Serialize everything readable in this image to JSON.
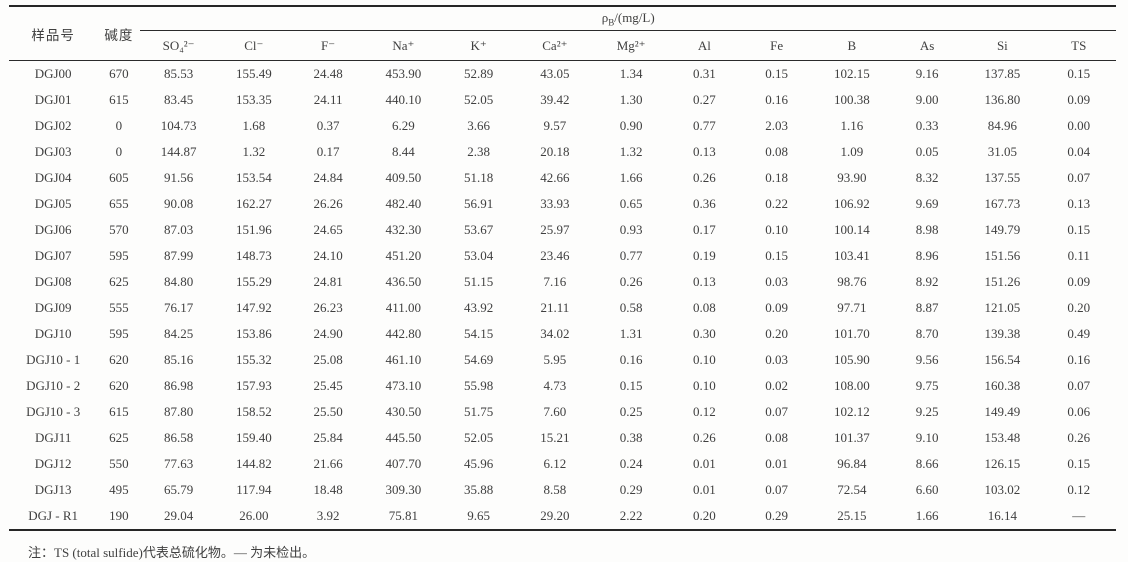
{
  "table": {
    "col_sample": "样品号",
    "col_alkalinity": "碱度",
    "group_header": {
      "rho": "ρ",
      "sub": "B",
      "unit": "/(mg/L)"
    },
    "ion_columns": [
      "SO₄²⁻",
      "Cl⁻",
      "F⁻",
      "Na⁺",
      "K⁺",
      "Ca²⁺",
      "Mg²⁺",
      "Al",
      "Fe",
      "B",
      "As",
      "Si",
      "TS"
    ],
    "rows": [
      {
        "id": "DGJ00",
        "alkalinity": "670",
        "values": [
          "85.53",
          "155.49",
          "24.48",
          "453.90",
          "52.89",
          "43.05",
          "1.34",
          "0.31",
          "0.15",
          "102.15",
          "9.16",
          "137.85",
          "0.15"
        ]
      },
      {
        "id": "DGJ01",
        "alkalinity": "615",
        "values": [
          "83.45",
          "153.35",
          "24.11",
          "440.10",
          "52.05",
          "39.42",
          "1.30",
          "0.27",
          "0.16",
          "100.38",
          "9.00",
          "136.80",
          "0.09"
        ]
      },
      {
        "id": "DGJ02",
        "alkalinity": "0",
        "values": [
          "104.73",
          "1.68",
          "0.37",
          "6.29",
          "3.66",
          "9.57",
          "0.90",
          "0.77",
          "2.03",
          "1.16",
          "0.33",
          "84.96",
          "0.00"
        ]
      },
      {
        "id": "DGJ03",
        "alkalinity": "0",
        "values": [
          "144.87",
          "1.32",
          "0.17",
          "8.44",
          "2.38",
          "20.18",
          "1.32",
          "0.13",
          "0.08",
          "1.09",
          "0.05",
          "31.05",
          "0.04"
        ]
      },
      {
        "id": "DGJ04",
        "alkalinity": "605",
        "values": [
          "91.56",
          "153.54",
          "24.84",
          "409.50",
          "51.18",
          "42.66",
          "1.66",
          "0.26",
          "0.18",
          "93.90",
          "8.32",
          "137.55",
          "0.07"
        ]
      },
      {
        "id": "DGJ05",
        "alkalinity": "655",
        "values": [
          "90.08",
          "162.27",
          "26.26",
          "482.40",
          "56.91",
          "33.93",
          "0.65",
          "0.36",
          "0.22",
          "106.92",
          "9.69",
          "167.73",
          "0.13"
        ]
      },
      {
        "id": "DGJ06",
        "alkalinity": "570",
        "values": [
          "87.03",
          "151.96",
          "24.65",
          "432.30",
          "53.67",
          "25.97",
          "0.93",
          "0.17",
          "0.10",
          "100.14",
          "8.98",
          "149.79",
          "0.15"
        ]
      },
      {
        "id": "DGJ07",
        "alkalinity": "595",
        "values": [
          "87.99",
          "148.73",
          "24.10",
          "451.20",
          "53.04",
          "23.46",
          "0.77",
          "0.19",
          "0.15",
          "103.41",
          "8.96",
          "151.56",
          "0.11"
        ]
      },
      {
        "id": "DGJ08",
        "alkalinity": "625",
        "values": [
          "84.80",
          "155.29",
          "24.81",
          "436.50",
          "51.15",
          "7.16",
          "0.26",
          "0.13",
          "0.03",
          "98.76",
          "8.92",
          "151.26",
          "0.09"
        ]
      },
      {
        "id": "DGJ09",
        "alkalinity": "555",
        "values": [
          "76.17",
          "147.92",
          "26.23",
          "411.00",
          "43.92",
          "21.11",
          "0.58",
          "0.08",
          "0.09",
          "97.71",
          "8.87",
          "121.05",
          "0.20"
        ]
      },
      {
        "id": "DGJ10",
        "alkalinity": "595",
        "values": [
          "84.25",
          "153.86",
          "24.90",
          "442.80",
          "54.15",
          "34.02",
          "1.31",
          "0.30",
          "0.20",
          "101.70",
          "8.70",
          "139.38",
          "0.49"
        ]
      },
      {
        "id": "DGJ10 - 1",
        "alkalinity": "620",
        "values": [
          "85.16",
          "155.32",
          "25.08",
          "461.10",
          "54.69",
          "5.95",
          "0.16",
          "0.10",
          "0.03",
          "105.90",
          "9.56",
          "156.54",
          "0.16"
        ]
      },
      {
        "id": "DGJ10 - 2",
        "alkalinity": "620",
        "values": [
          "86.98",
          "157.93",
          "25.45",
          "473.10",
          "55.98",
          "4.73",
          "0.15",
          "0.10",
          "0.02",
          "108.00",
          "9.75",
          "160.38",
          "0.07"
        ]
      },
      {
        "id": "DGJ10 - 3",
        "alkalinity": "615",
        "values": [
          "87.80",
          "158.52",
          "25.50",
          "430.50",
          "51.75",
          "7.60",
          "0.25",
          "0.12",
          "0.07",
          "102.12",
          "9.25",
          "149.49",
          "0.06"
        ]
      },
      {
        "id": "DGJ11",
        "alkalinity": "625",
        "values": [
          "86.58",
          "159.40",
          "25.84",
          "445.50",
          "52.05",
          "15.21",
          "0.38",
          "0.26",
          "0.08",
          "101.37",
          "9.10",
          "153.48",
          "0.26"
        ]
      },
      {
        "id": "DGJ12",
        "alkalinity": "550",
        "values": [
          "77.63",
          "144.82",
          "21.66",
          "407.70",
          "45.96",
          "6.12",
          "0.24",
          "0.01",
          "0.01",
          "96.84",
          "8.66",
          "126.15",
          "0.15"
        ]
      },
      {
        "id": "DGJ13",
        "alkalinity": "495",
        "values": [
          "65.79",
          "117.94",
          "18.48",
          "309.30",
          "35.88",
          "8.58",
          "0.29",
          "0.01",
          "0.07",
          "72.54",
          "6.60",
          "103.02",
          "0.12"
        ]
      },
      {
        "id": "DGJ - R1",
        "alkalinity": "190",
        "values": [
          "29.04",
          "26.00",
          "3.92",
          "75.81",
          "9.65",
          "29.20",
          "2.22",
          "0.20",
          "0.29",
          "25.15",
          "1.66",
          "16.14",
          "—"
        ]
      }
    ]
  },
  "note": "注：TS (total sulfide)代表总硫化物。— 为未检出。"
}
